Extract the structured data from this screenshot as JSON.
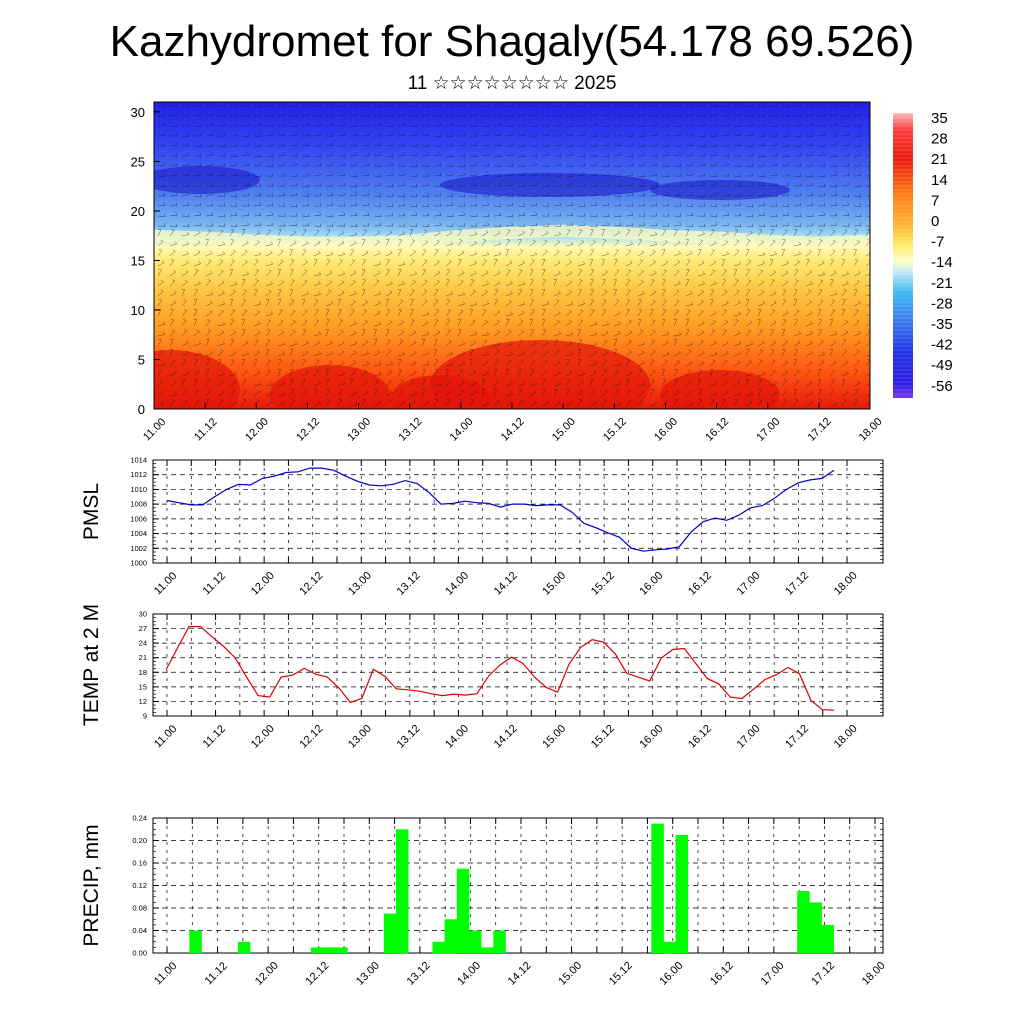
{
  "title": "Kazhydromet for Shagaly(54.178 69.526)",
  "subtitle": "11 ☆☆☆☆☆☆☆☆ 2025",
  "time_labels": [
    "11.00",
    "11.12",
    "12.00",
    "12.12",
    "13.00",
    "13.12",
    "14.00",
    "14.12",
    "15.00",
    "15.12",
    "16.00",
    "16.12",
    "17.00",
    "17.12",
    "18.00"
  ],
  "colorbar_labels": [
    "35",
    "28",
    "21",
    "14",
    "7",
    "0",
    "-7",
    "-14",
    "-21",
    "-28",
    "-35",
    "-42",
    "-49",
    "-56"
  ],
  "chart_data": [
    {
      "type": "heatmap",
      "title": "",
      "xlabel": "",
      "ylabel": "",
      "x_labels": [
        "11.00",
        "11.12",
        "12.00",
        "12.12",
        "13.00",
        "13.12",
        "14.00",
        "14.12",
        "15.00",
        "15.12",
        "16.00",
        "16.12",
        "17.00",
        "17.12",
        "18.00"
      ],
      "y_ticks": [
        0,
        5,
        10,
        15,
        20,
        25,
        30
      ],
      "ylim": [
        0,
        31
      ],
      "colorbar": {
        "min": -56,
        "max": 35,
        "labels": [
          "35",
          "28",
          "21",
          "14",
          "7",
          "0",
          "-7",
          "-14",
          "-21",
          "-28",
          "-35",
          "-42",
          "-49",
          "-56"
        ]
      },
      "zero_contour_level": [
        17.5,
        17.3,
        17.0,
        16.8,
        16.8,
        17.0,
        17.5,
        17.8,
        18.0,
        17.8,
        17.5,
        17.3,
        17.0,
        16.8,
        17.0
      ]
    },
    {
      "type": "line",
      "ylabel": "PMSL",
      "ylim": [
        1000,
        1014
      ],
      "y_ticks": [
        "1000",
        "1002",
        "1004",
        "1006",
        "1008",
        "1010",
        "1012",
        "1014"
      ],
      "x_labels": [
        "11.00",
        "11.12",
        "12.00",
        "12.12",
        "13.00",
        "13.12",
        "14.00",
        "14.12",
        "15.00",
        "15.12",
        "16.00",
        "16.12",
        "17.00",
        "17.12",
        "18.00"
      ],
      "series": [
        {
          "color": "#0000cc",
          "values": [
            1008.5,
            1008.2,
            1007.9,
            1007.9,
            1009.0,
            1010.0,
            1010.7,
            1010.6,
            1011.5,
            1011.8,
            1012.3,
            1012.4,
            1012.9,
            1012.9,
            1012.6,
            1011.8,
            1011.1,
            1010.6,
            1010.5,
            1010.7,
            1011.2,
            1010.8,
            1009.6,
            1008.0,
            1008.1,
            1008.4,
            1008.2,
            1008.1,
            1007.6,
            1008.0,
            1008.0,
            1007.8,
            1007.9,
            1007.9,
            1006.9,
            1005.4,
            1004.8,
            1004.1,
            1003.5,
            1002.0,
            1001.6,
            1001.8,
            1001.9,
            1002.2,
            1004.2,
            1005.6,
            1006.1,
            1005.8,
            1006.5,
            1007.5,
            1007.8,
            1008.8,
            1010.0,
            1010.9,
            1011.3,
            1011.5,
            1012.6
          ]
        }
      ]
    },
    {
      "type": "line",
      "ylabel": "TEMP at 2 M",
      "ylim": [
        9,
        30
      ],
      "y_ticks": [
        "9",
        "12",
        "15",
        "18",
        "21",
        "24",
        "27",
        "30"
      ],
      "x_labels": [
        "11.00",
        "11.12",
        "12.00",
        "12.12",
        "13.00",
        "13.12",
        "14.00",
        "14.12",
        "15.00",
        "15.12",
        "16.00",
        "16.12",
        "17.00",
        "17.12",
        "18.00"
      ],
      "series": [
        {
          "color": "#dd0000",
          "values": [
            18.5,
            23.0,
            27.4,
            27.4,
            25.3,
            23.3,
            21.0,
            17.0,
            13.2,
            12.9,
            17.0,
            17.4,
            18.8,
            17.6,
            17.0,
            14.8,
            11.8,
            12.6,
            18.6,
            17.2,
            14.6,
            14.4,
            14.1,
            13.6,
            13.2,
            13.5,
            13.3,
            13.6,
            17.2,
            19.5,
            21.1,
            19.8,
            17.0,
            14.9,
            13.9,
            19.7,
            23.1,
            24.7,
            24.2,
            21.8,
            17.8,
            17.0,
            16.2,
            20.9,
            22.7,
            22.9,
            19.8,
            16.7,
            15.6,
            12.9,
            12.6,
            14.5,
            16.5,
            17.5,
            19.0,
            17.7,
            12.2,
            10.3,
            10.2
          ]
        }
      ]
    },
    {
      "type": "bar",
      "ylabel": "PRECIP, mm",
      "ylim": [
        0,
        0.24
      ],
      "y_ticks": [
        "0.00",
        "0.04",
        "0.08",
        "0.12",
        "0.16",
        "0.20",
        "0.24"
      ],
      "x_labels": [
        "11.00",
        "11.12",
        "12.00",
        "12.12",
        "13.00",
        "13.12",
        "14.00",
        "14.12",
        "15.00",
        "15.12",
        "16.00",
        "16.12",
        "17.00",
        "17.12",
        "18.00"
      ],
      "color": "#00ff00",
      "values": [
        0,
        0,
        0.04,
        0,
        0,
        0,
        0.02,
        0,
        0,
        0,
        0,
        0,
        0.01,
        0.01,
        0.01,
        0,
        0,
        0,
        0.07,
        0.22,
        0,
        0,
        0.02,
        0.06,
        0.15,
        0.04,
        0.01,
        0.04,
        0,
        0,
        0,
        0,
        0,
        0,
        0,
        0,
        0,
        0,
        0,
        0,
        0.23,
        0.02,
        0.21,
        0,
        0,
        0,
        0,
        0,
        0,
        0,
        0,
        0,
        0.11,
        0.09,
        0.05,
        0,
        0
      ]
    }
  ]
}
